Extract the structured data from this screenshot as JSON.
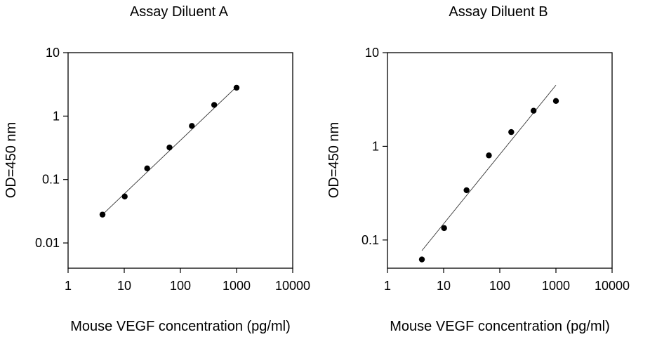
{
  "chart_data": [
    {
      "type": "scatter",
      "title": "Assay Diluent A",
      "xlabel": "Mouse VEGF concentration (pg/ml)",
      "ylabel": "OD=450 nm",
      "x_scale": "log",
      "y_scale": "log",
      "xlim": [
        1,
        10000
      ],
      "ylim": [
        0.004,
        10
      ],
      "x_ticks": [
        1,
        10,
        100,
        1000,
        10000
      ],
      "x_tick_labels": [
        "1",
        "10",
        "100",
        "1000",
        "10000"
      ],
      "y_ticks": [
        0.01,
        0.1,
        1,
        10
      ],
      "y_tick_labels": [
        "0.01",
        "0.1",
        "1",
        "10"
      ],
      "grid": false,
      "series": [
        {
          "x": [
            4.1,
            10.2,
            25.6,
            64,
            160,
            400,
            1000
          ],
          "y": [
            0.028,
            0.054,
            0.15,
            0.32,
            0.7,
            1.5,
            2.8
          ]
        }
      ],
      "fit_line": {
        "x": [
          4.1,
          1000
        ],
        "y": [
          0.028,
          2.9
        ]
      }
    },
    {
      "type": "scatter",
      "title": "Assay Diluent B",
      "xlabel": "Mouse VEGF concentration (pg/ml)",
      "ylabel": "OD=450 nm",
      "x_scale": "log",
      "y_scale": "log",
      "xlim": [
        1,
        10000
      ],
      "ylim": [
        0.05,
        10
      ],
      "x_ticks": [
        1,
        10,
        100,
        1000,
        10000
      ],
      "x_tick_labels": [
        "1",
        "10",
        "100",
        "1000",
        "10000"
      ],
      "y_ticks": [
        0.1,
        1,
        10
      ],
      "y_tick_labels": [
        "0.1",
        "1",
        "10"
      ],
      "grid": false,
      "series": [
        {
          "x": [
            4.1,
            10.2,
            25.6,
            64,
            160,
            400,
            1000
          ],
          "y": [
            0.062,
            0.134,
            0.34,
            0.8,
            1.42,
            2.4,
            3.05
          ]
        }
      ],
      "fit_line": {
        "x": [
          4.1,
          1000
        ],
        "y": [
          0.077,
          4.5
        ]
      }
    }
  ]
}
